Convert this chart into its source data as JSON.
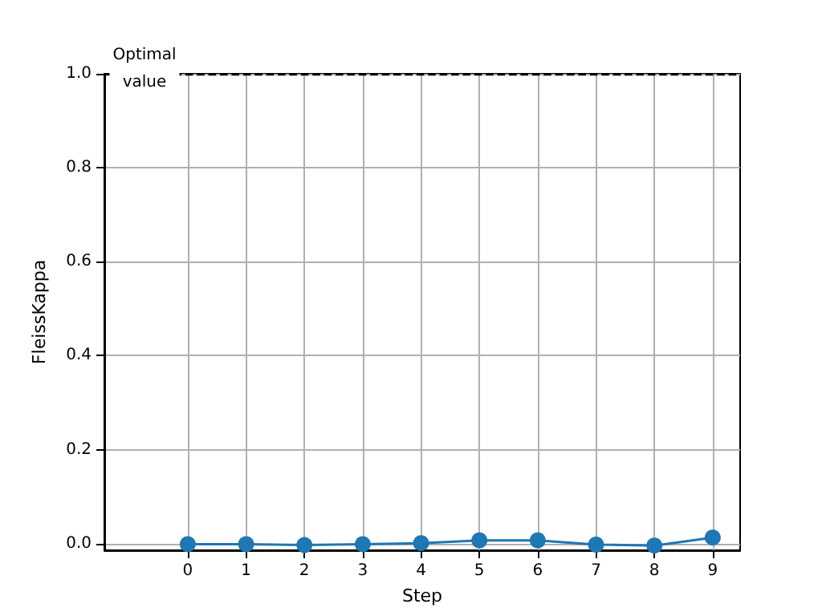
{
  "chart_data": {
    "type": "line",
    "xlabel": "Step",
    "ylabel": "FleissKappa",
    "x": [
      0,
      1,
      2,
      3,
      4,
      5,
      6,
      7,
      8,
      9
    ],
    "series": [
      {
        "color": "#1f77b4",
        "values": [
          -0.001,
          -0.001,
          -0.003,
          -0.001,
          0.001,
          0.007,
          0.007,
          -0.002,
          -0.004,
          0.013
        ]
      }
    ],
    "xlim": [
      -1.43,
      9.47
    ],
    "xticks": [
      0,
      1,
      2,
      3,
      4,
      5,
      6,
      7,
      8,
      9
    ],
    "ylim": [
      -0.014,
      1.0
    ],
    "yticks": [
      {
        "value": 0,
        "label": "0.0"
      },
      0.2,
      0.4,
      0.6,
      0.8,
      {
        "value": 1,
        "label": "1.0"
      }
    ],
    "ref_lines": [
      {
        "axis": "y",
        "value": 1,
        "label": "Optimal value",
        "color": "#000000",
        "line_style": "dashed"
      }
    ],
    "grid": true,
    "marker": "circle",
    "line_style": "solid"
  }
}
